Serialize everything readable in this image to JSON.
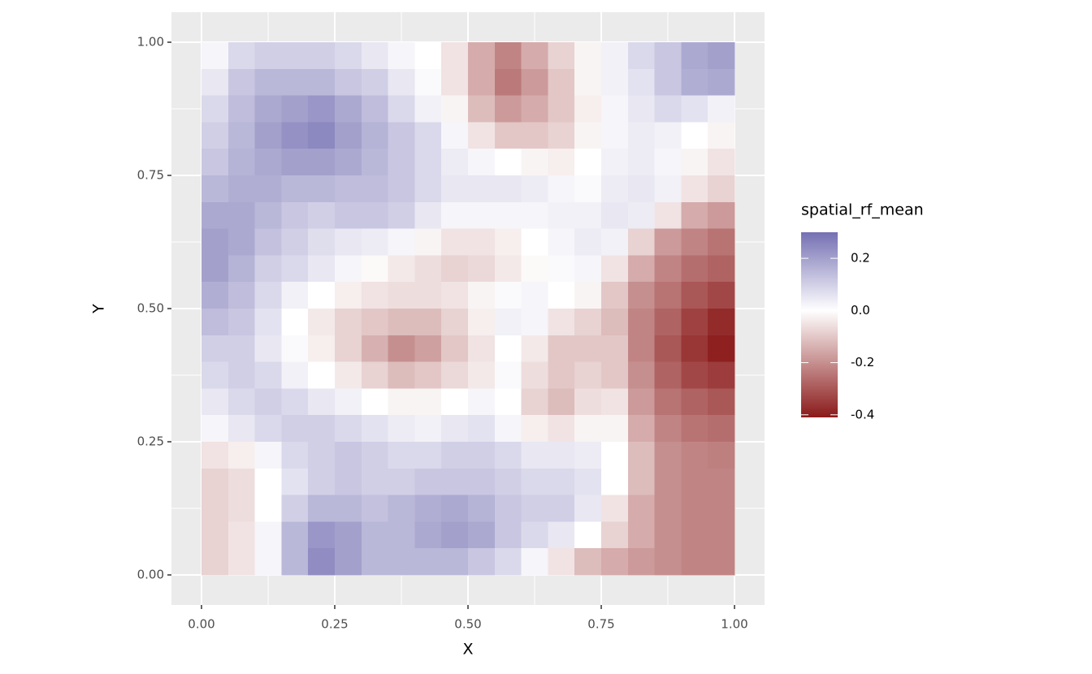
{
  "chart_data": {
    "type": "heatmap",
    "xlabel": "X",
    "ylabel": "Y",
    "x": [
      0.025,
      0.075,
      0.125,
      0.175,
      0.225,
      0.275,
      0.325,
      0.375,
      0.425,
      0.475,
      0.525,
      0.575,
      0.625,
      0.675,
      0.725,
      0.775,
      0.825,
      0.875,
      0.925,
      0.975
    ],
    "y": [
      0.975,
      0.925,
      0.875,
      0.825,
      0.775,
      0.725,
      0.675,
      0.625,
      0.575,
      0.525,
      0.475,
      0.425,
      0.375,
      0.325,
      0.275,
      0.225,
      0.175,
      0.125,
      0.075,
      0.025
    ],
    "z": [
      [
        0.02,
        0.08,
        0.1,
        0.1,
        0.1,
        0.08,
        0.05,
        0.02,
        0,
        -0.05,
        -0.15,
        -0.22,
        -0.15,
        -0.08,
        -0.02,
        0.03,
        0.08,
        0.12,
        0.18,
        0.2
      ],
      [
        0.05,
        0.12,
        0.15,
        0.15,
        0.15,
        0.12,
        0.1,
        0.05,
        0.01,
        -0.05,
        -0.15,
        -0.24,
        -0.18,
        -0.1,
        -0.02,
        0.03,
        0.06,
        0.12,
        0.17,
        0.18
      ],
      [
        0.08,
        0.14,
        0.18,
        0.2,
        0.22,
        0.18,
        0.14,
        0.08,
        0.03,
        -0.02,
        -0.12,
        -0.18,
        -0.15,
        -0.1,
        -0.03,
        0.02,
        0.05,
        0.08,
        0.06,
        0.03
      ],
      [
        0.1,
        0.15,
        0.2,
        0.23,
        0.25,
        0.2,
        0.16,
        0.12,
        0.08,
        0.02,
        -0.05,
        -0.1,
        -0.1,
        -0.08,
        -0.02,
        0.02,
        0.04,
        0.03,
        0,
        -0.02
      ],
      [
        0.12,
        0.16,
        0.18,
        0.2,
        0.2,
        0.18,
        0.15,
        0.12,
        0.08,
        0.04,
        0.02,
        0,
        -0.02,
        -0.03,
        0,
        0.03,
        0.04,
        0.02,
        -0.02,
        -0.05
      ],
      [
        0.15,
        0.17,
        0.17,
        0.15,
        0.15,
        0.14,
        0.14,
        0.12,
        0.08,
        0.05,
        0.05,
        0.05,
        0.04,
        0.02,
        0.01,
        0.04,
        0.05,
        0.03,
        -0.05,
        -0.08
      ],
      [
        0.18,
        0.18,
        0.15,
        0.12,
        0.1,
        0.12,
        0.12,
        0.1,
        0.05,
        0.02,
        0.02,
        0.02,
        0.02,
        0.03,
        0.03,
        0.05,
        0.04,
        -0.05,
        -0.15,
        -0.18
      ],
      [
        0.2,
        0.18,
        0.13,
        0.1,
        0.07,
        0.05,
        0.04,
        0.02,
        -0.02,
        -0.05,
        -0.05,
        -0.03,
        0,
        0.02,
        0.04,
        0.03,
        -0.08,
        -0.18,
        -0.22,
        -0.25
      ],
      [
        0.2,
        0.16,
        0.1,
        0.08,
        0.05,
        0.02,
        -0.01,
        -0.04,
        -0.06,
        -0.08,
        -0.07,
        -0.04,
        -0.01,
        0.01,
        0.02,
        -0.05,
        -0.15,
        -0.22,
        -0.26,
        -0.28
      ],
      [
        0.17,
        0.14,
        0.08,
        0.03,
        0,
        -0.03,
        -0.05,
        -0.06,
        -0.06,
        -0.05,
        -0.02,
        0.01,
        0.02,
        0,
        -0.02,
        -0.1,
        -0.2,
        -0.25,
        -0.3,
        -0.33
      ],
      [
        0.14,
        0.12,
        0.06,
        0,
        -0.04,
        -0.08,
        -0.1,
        -0.12,
        -0.12,
        -0.08,
        -0.03,
        0.03,
        0.02,
        -0.05,
        -0.08,
        -0.12,
        -0.22,
        -0.28,
        -0.34,
        -0.38
      ],
      [
        0.1,
        0.1,
        0.05,
        0.01,
        -0.03,
        -0.08,
        -0.14,
        -0.2,
        -0.17,
        -0.1,
        -0.05,
        0,
        -0.04,
        -0.1,
        -0.1,
        -0.1,
        -0.22,
        -0.3,
        -0.36,
        -0.4
      ],
      [
        0.08,
        0.1,
        0.08,
        0.03,
        0,
        -0.04,
        -0.08,
        -0.12,
        -0.1,
        -0.07,
        -0.04,
        0.01,
        -0.06,
        -0.1,
        -0.08,
        -0.1,
        -0.2,
        -0.28,
        -0.33,
        -0.35
      ],
      [
        0.05,
        0.08,
        0.1,
        0.08,
        0.05,
        0.03,
        0,
        -0.02,
        -0.02,
        0,
        0.02,
        0,
        -0.08,
        -0.12,
        -0.06,
        -0.05,
        -0.18,
        -0.25,
        -0.28,
        -0.3
      ],
      [
        0.02,
        0.05,
        0.08,
        0.1,
        0.1,
        0.08,
        0.06,
        0.04,
        0.03,
        0.05,
        0.06,
        0.02,
        -0.03,
        -0.05,
        -0.02,
        -0.02,
        -0.15,
        -0.22,
        -0.25,
        -0.26
      ],
      [
        -0.05,
        -0.03,
        0.02,
        0.08,
        0.1,
        0.12,
        0.1,
        0.08,
        0.08,
        0.1,
        0.1,
        0.08,
        0.05,
        0.05,
        0.04,
        0,
        -0.12,
        -0.2,
        -0.22,
        -0.23
      ],
      [
        -0.08,
        -0.06,
        0,
        0.06,
        0.1,
        0.12,
        0.1,
        0.1,
        0.12,
        0.12,
        0.12,
        0.1,
        0.08,
        0.08,
        0.06,
        0,
        -0.12,
        -0.2,
        -0.22,
        -0.22
      ],
      [
        -0.08,
        -0.06,
        0,
        0.1,
        0.15,
        0.15,
        0.13,
        0.15,
        0.17,
        0.18,
        0.16,
        0.12,
        0.1,
        0.1,
        0.05,
        -0.05,
        -0.15,
        -0.2,
        -0.22,
        -0.22
      ],
      [
        -0.08,
        -0.05,
        0.02,
        0.15,
        0.22,
        0.2,
        0.15,
        0.15,
        0.18,
        0.2,
        0.18,
        0.12,
        0.08,
        0.05,
        0,
        -0.08,
        -0.15,
        -0.2,
        -0.22,
        -0.22
      ],
      [
        -0.08,
        -0.05,
        0.02,
        0.15,
        0.24,
        0.2,
        0.15,
        0.15,
        0.15,
        0.15,
        0.12,
        0.08,
        0.02,
        -0.05,
        -0.12,
        -0.15,
        -0.18,
        -0.2,
        -0.22,
        -0.22
      ]
    ],
    "xlim": [
      -0.0564,
      1.0564
    ],
    "ylim": [
      -0.0564,
      1.0564
    ],
    "xticks": [
      {
        "value": 0,
        "label": "0.00"
      },
      {
        "value": 0.25,
        "label": "0.25"
      },
      {
        "value": 0.5,
        "label": "0.50"
      },
      {
        "value": 0.75,
        "label": "0.75"
      },
      {
        "value": 1,
        "label": "1.00"
      }
    ],
    "yticks": [
      {
        "value": 0,
        "label": "0.00"
      },
      {
        "value": 0.25,
        "label": "0.25"
      },
      {
        "value": 0.5,
        "label": "0.50"
      },
      {
        "value": 0.75,
        "label": "0.75"
      },
      {
        "value": 1,
        "label": "1.00"
      }
    ],
    "minor_ticks": [
      0.125,
      0.375,
      0.625,
      0.875
    ],
    "grid": true,
    "colors": {
      "low": "#8B1A1A",
      "mid": "#FFFFFF",
      "high": "#7570B3"
    },
    "zlim": [
      -0.41,
      0.3
    ],
    "legend": {
      "title": "spatial_rf_mean",
      "position": "right",
      "ticks": [
        0.2,
        {
          "value": 0,
          "label": "0.0"
        },
        -0.2,
        -0.4
      ]
    }
  }
}
